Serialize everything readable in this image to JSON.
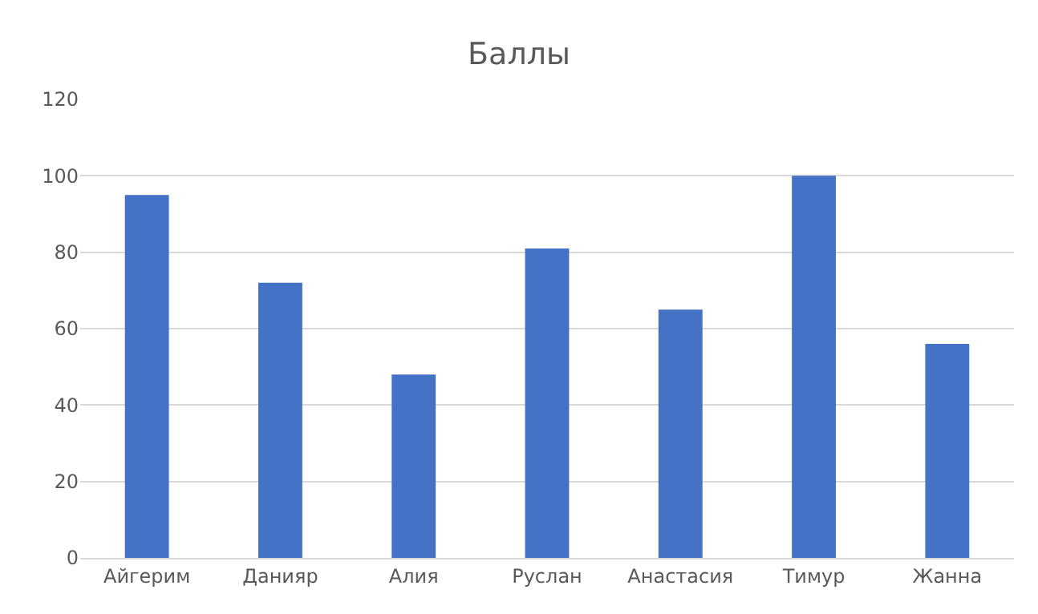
{
  "chart_data": {
    "type": "bar",
    "title": "Баллы",
    "categories": [
      "Айгерим",
      "Данияр",
      "Алия",
      "Руслан",
      "Анастасия",
      "Тимур",
      "Жанна"
    ],
    "values": [
      95,
      72,
      48,
      81,
      65,
      100,
      56
    ],
    "color": "#4472c4",
    "ylim": [
      0,
      120
    ],
    "yticks": [
      0,
      20,
      40,
      60,
      80,
      100,
      120
    ],
    "grid": "y"
  }
}
